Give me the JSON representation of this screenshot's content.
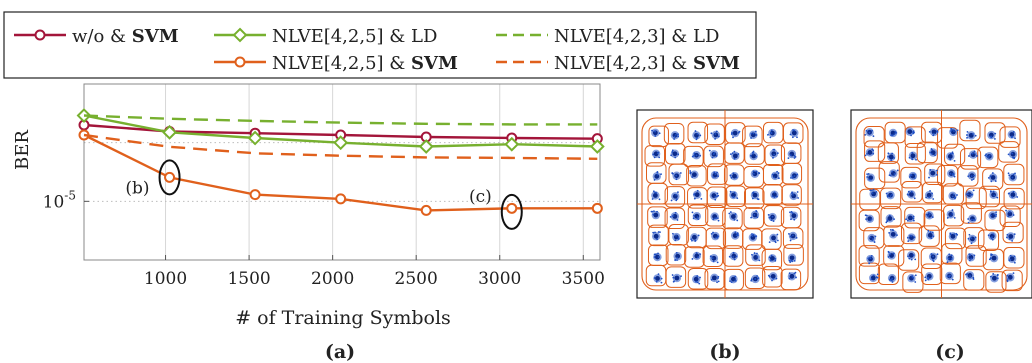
{
  "legend": {
    "items": [
      {
        "prefix": "w/o & ",
        "suffix": "SVM",
        "suffix_bold": true
      },
      {
        "prefix": "NLVE[4,2,5] & LD",
        "suffix": "",
        "suffix_bold": false
      },
      {
        "prefix": "NLVE[4,2,3] & LD",
        "suffix": "",
        "suffix_bold": false
      },
      {
        "prefix": "NLVE[4,2,5] & ",
        "suffix": "SVM",
        "suffix_bold": true
      },
      {
        "prefix": "NLVE[4,2,3] & ",
        "suffix": "SVM",
        "suffix_bold": true
      }
    ]
  },
  "subfigure_labels": {
    "a": "(a)",
    "b": "(b)",
    "c": "(c)"
  },
  "colors": {
    "crimson": "#a3153a",
    "green": "#77b02f",
    "orange": "#e0601c",
    "blue": "#1f4fc4"
  },
  "chart_data": {
    "type": "line",
    "xlabel": "# of Training Symbols",
    "ylabel": "BER",
    "xlim": [
      512,
      3600
    ],
    "ylim": [
      1e-06,
      0.001
    ],
    "yscale": "log",
    "xticks": [
      1000,
      1500,
      2000,
      2500,
      3000,
      3500
    ],
    "yticks": [
      {
        "value": 1e-05,
        "label": "10",
        "exp": "-5"
      }
    ],
    "grid": true,
    "legend_position": "top",
    "annotations": [
      {
        "text": "(b)",
        "x": 1024,
        "y": 2.56e-05
      },
      {
        "text": "(c)",
        "x": 3072,
        "y": 6.6e-06
      }
    ],
    "series": [
      {
        "name": "w/o & SVM",
        "color": "#a3153a",
        "style": "solid",
        "marker": "circle",
        "x": [
          512,
          1024,
          1536,
          2048,
          2560,
          3072,
          3584
        ],
        "y": [
          0.0002,
          0.000155,
          0.000145,
          0.000135,
          0.000125,
          0.00012,
          0.000117
        ]
      },
      {
        "name": "NLVE[4,2,5] & LD",
        "color": "#77b02f",
        "style": "solid",
        "marker": "diamond",
        "x": [
          512,
          1024,
          1536,
          2048,
          2560,
          3072,
          3584
        ],
        "y": [
          0.00029,
          0.00015,
          0.00012,
          0.0001,
          8.6e-05,
          9.4e-05,
          8.6e-05
        ]
      },
      {
        "name": "NLVE[4,2,3] & LD",
        "color": "#77b02f",
        "style": "dashed",
        "marker": "none",
        "x": [
          512,
          1024,
          1536,
          2048,
          2560,
          3072,
          3584
        ],
        "y": [
          0.00029,
          0.000255,
          0.000235,
          0.00022,
          0.00021,
          0.000205,
          0.000205
        ]
      },
      {
        "name": "NLVE[4,2,5] & SVM",
        "color": "#e0601c",
        "style": "solid",
        "marker": "circle",
        "x": [
          512,
          1024,
          1536,
          2048,
          2560,
          3072,
          3584
        ],
        "y": [
          0.000135,
          2.56e-05,
          1.3e-05,
          1.1e-05,
          7e-06,
          7.6e-06,
          7.6e-06
        ]
      },
      {
        "name": "NLVE[4,2,3] & SVM",
        "color": "#e0601c",
        "style": "dashed",
        "marker": "none",
        "x": [
          512,
          1024,
          1536,
          2048,
          2560,
          3072,
          3584
        ],
        "y": [
          0.000135,
          8.5e-05,
          6.6e-05,
          6e-05,
          5.6e-05,
          5.5e-05,
          5.3e-05
        ]
      }
    ]
  }
}
